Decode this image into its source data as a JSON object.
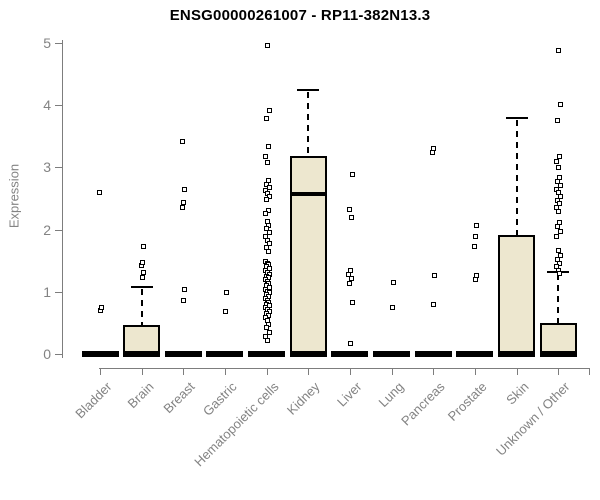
{
  "chart_data": {
    "type": "boxplot",
    "title": "ENSG00000261007 - RP11-382N13.3",
    "ylabel": "Expression",
    "ylim": [
      0,
      5
    ],
    "yticks": [
      0,
      1,
      2,
      3,
      4,
      5
    ],
    "grid": false,
    "legend": "none",
    "colors": {
      "box_fill": "#EDE7CF",
      "box_border": "#000000",
      "axis": "#7d7d7d",
      "tick_label": "#838383",
      "title": "#000000"
    },
    "marker": "open-square",
    "categories": [
      {
        "label": "Bladder",
        "q1": 0,
        "median": 0,
        "q3": 0,
        "whisker_low": 0,
        "whisker_high": 0,
        "outliers": [
          0.71,
          0.76,
          2.6
        ]
      },
      {
        "label": "Brain",
        "q1": 0,
        "median": 0.02,
        "q3": 0.45,
        "whisker_low": 0,
        "whisker_high": 1.08,
        "outliers": [
          1.24,
          1.32,
          1.43,
          1.48,
          1.73
        ]
      },
      {
        "label": "Breast",
        "q1": 0,
        "median": 0,
        "q3": 0,
        "whisker_low": 0,
        "whisker_high": 0,
        "outliers": [
          0.87,
          1.04,
          2.37,
          2.45,
          2.65,
          3.43
        ]
      },
      {
        "label": "Gastric",
        "q1": 0,
        "median": 0,
        "q3": 0,
        "whisker_low": 0,
        "whisker_high": 0,
        "outliers": [
          0.69,
          1.0
        ]
      },
      {
        "label": "Hematopoietic cells",
        "q1": 0,
        "median": 0,
        "q3": 0,
        "whisker_low": 0,
        "whisker_high": 0,
        "outliers": [
          4.97,
          3.92,
          3.8,
          3.34,
          3.19,
          3.08,
          2.8,
          2.74,
          2.69,
          2.64,
          2.59,
          2.54,
          2.49,
          2.31,
          2.26,
          2.14,
          2.08,
          2.02,
          1.96,
          1.9,
          1.84,
          1.78,
          1.72,
          1.66,
          1.5,
          1.47,
          1.44,
          1.41,
          1.38,
          1.35,
          1.32,
          1.29,
          1.26,
          1.23,
          1.2,
          1.17,
          1.14,
          1.11,
          1.08,
          1.05,
          1.02,
          0.99,
          0.96,
          0.93,
          0.9,
          0.87,
          0.84,
          0.81,
          0.78,
          0.75,
          0.72,
          0.69,
          0.66,
          0.63,
          0.6,
          0.55,
          0.49,
          0.43,
          0.36,
          0.29,
          0.22
        ]
      },
      {
        "label": "Kidney",
        "q1": 0,
        "median": 2.57,
        "q3": 3.16,
        "whisker_low": 0,
        "whisker_high": 4.25,
        "outliers": []
      },
      {
        "label": "Liver",
        "q1": 0,
        "median": 0,
        "q3": 0,
        "whisker_low": 0,
        "whisker_high": 0,
        "outliers": [
          0.17,
          0.84,
          1.14,
          1.22,
          1.29,
          1.35,
          2.21,
          2.33,
          2.89
        ]
      },
      {
        "label": "Lung",
        "q1": 0,
        "median": 0,
        "q3": 0,
        "whisker_low": 0,
        "whisker_high": 0,
        "outliers": [
          0.76,
          1.16
        ]
      },
      {
        "label": "Pancreas",
        "q1": 0,
        "median": 0,
        "q3": 0,
        "whisker_low": 0,
        "whisker_high": 0,
        "outliers": [
          0.81,
          1.27,
          3.25,
          3.31
        ]
      },
      {
        "label": "Prostate",
        "q1": 0,
        "median": 0,
        "q3": 0,
        "whisker_low": 0,
        "whisker_high": 0,
        "outliers": [
          1.21,
          1.27,
          1.74,
          1.9,
          2.07
        ]
      },
      {
        "label": "Skin",
        "q1": 0,
        "median": 0.02,
        "q3": 1.9,
        "whisker_low": 0,
        "whisker_high": 3.8,
        "outliers": []
      },
      {
        "label": "Unknown / Other",
        "q1": 0,
        "median": 0.02,
        "q3": 0.48,
        "whisker_low": 0,
        "whisker_high": 1.32,
        "outliers": [
          4.88,
          4.02,
          3.76,
          3.19,
          3.1,
          3.01,
          2.84,
          2.78,
          2.72,
          2.66,
          2.6,
          2.54,
          2.48,
          2.42,
          2.36,
          2.3,
          2.13,
          2.05,
          1.97,
          1.89,
          1.67,
          1.59,
          1.52,
          1.46,
          1.41,
          1.35,
          1.3
        ]
      }
    ]
  }
}
